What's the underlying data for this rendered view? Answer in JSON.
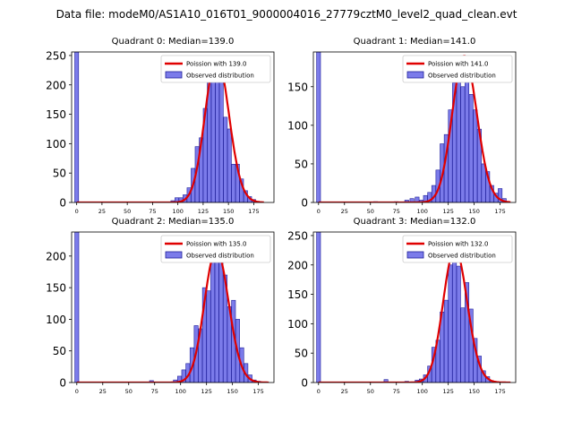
{
  "suptitle": "Data file: modeM0/AS1A10_016T01_9000004016_27779cztM0_level2_quad_clean.evt",
  "colors": {
    "bar_fill": "#7b7bea",
    "bar_edge": "#1f1f9a",
    "line": "#e00000"
  },
  "chart_data": [
    {
      "type": "bar",
      "title": "Quadrant 0: Median=139.0",
      "legend": [
        "Poission with 139.0",
        "Observed distribution"
      ],
      "legend_position": "top-right",
      "xlim": [
        -5,
        195
      ],
      "ylim": [
        0,
        256
      ],
      "xticks": [
        0,
        25,
        50,
        75,
        100,
        125,
        150,
        175
      ],
      "yticks": [
        0,
        50,
        100,
        150,
        200,
        250
      ],
      "bin_width": 3.8,
      "bins": [
        [
          0,
          300
        ],
        [
          95,
          3
        ],
        [
          99,
          8
        ],
        [
          103,
          8
        ],
        [
          107,
          13
        ],
        [
          111,
          25
        ],
        [
          115,
          58
        ],
        [
          119,
          95
        ],
        [
          123,
          110
        ],
        [
          127,
          160
        ],
        [
          131,
          235
        ],
        [
          135,
          225
        ],
        [
          139,
          248
        ],
        [
          143,
          205
        ],
        [
          147,
          145
        ],
        [
          151,
          125
        ],
        [
          155,
          65
        ],
        [
          159,
          65
        ],
        [
          163,
          40
        ],
        [
          167,
          20
        ],
        [
          171,
          10
        ],
        [
          175,
          5
        ]
      ],
      "poisson_mean": 139.0
    },
    {
      "type": "bar",
      "title": "Quadrant 1: Median=141.0",
      "legend": [
        "Poission with 141.0",
        "Observed distribution"
      ],
      "legend_position": "top-right",
      "xlim": [
        -5,
        190
      ],
      "ylim": [
        0,
        195
      ],
      "xticks": [
        0,
        25,
        50,
        75,
        100,
        125,
        150,
        175
      ],
      "yticks": [
        0,
        50,
        100,
        150
      ],
      "bin_width": 3.8,
      "bins": [
        [
          0,
          300
        ],
        [
          55,
          1
        ],
        [
          75,
          1
        ],
        [
          85,
          3
        ],
        [
          90,
          5
        ],
        [
          95,
          7
        ],
        [
          99,
          3
        ],
        [
          103,
          9
        ],
        [
          107,
          13
        ],
        [
          111,
          22
        ],
        [
          115,
          42
        ],
        [
          119,
          76
        ],
        [
          123,
          88
        ],
        [
          127,
          120
        ],
        [
          131,
          155
        ],
        [
          135,
          185
        ],
        [
          139,
          150
        ],
        [
          143,
          190
        ],
        [
          147,
          140
        ],
        [
          151,
          120
        ],
        [
          155,
          95
        ],
        [
          159,
          50
        ],
        [
          163,
          40
        ],
        [
          167,
          22
        ],
        [
          171,
          12
        ],
        [
          175,
          18
        ],
        [
          179,
          5
        ]
      ],
      "poisson_mean": 141.0
    },
    {
      "type": "bar",
      "title": "Quadrant 2: Median=135.0",
      "legend": [
        "Poission with 135.0",
        "Observed distribution"
      ],
      "legend_position": "top-right",
      "xlim": [
        -5,
        190
      ],
      "ylim": [
        0,
        238
      ],
      "xticks": [
        0,
        25,
        50,
        75,
        100,
        125,
        150,
        175
      ],
      "yticks": [
        0,
        50,
        100,
        150,
        200
      ],
      "bin_width": 3.8,
      "bins": [
        [
          0,
          300
        ],
        [
          72,
          3
        ],
        [
          95,
          4
        ],
        [
          99,
          10
        ],
        [
          103,
          20
        ],
        [
          107,
          30
        ],
        [
          111,
          55
        ],
        [
          115,
          90
        ],
        [
          119,
          85
        ],
        [
          123,
          150
        ],
        [
          127,
          145
        ],
        [
          131,
          200
        ],
        [
          135,
          190
        ],
        [
          139,
          210
        ],
        [
          143,
          170
        ],
        [
          147,
          120
        ],
        [
          151,
          130
        ],
        [
          155,
          100
        ],
        [
          159,
          55
        ],
        [
          163,
          30
        ],
        [
          167,
          12
        ],
        [
          171,
          4
        ],
        [
          175,
          2
        ]
      ],
      "poisson_mean": 135.0
    },
    {
      "type": "bar",
      "title": "Quadrant 3: Median=132.0",
      "legend": [
        "Poission with 132.0",
        "Observed distribution"
      ],
      "legend_position": "top-right",
      "xlim": [
        -5,
        190
      ],
      "ylim": [
        0,
        256
      ],
      "xticks": [
        0,
        25,
        50,
        75,
        100,
        125,
        150,
        175
      ],
      "yticks": [
        0,
        50,
        100,
        150,
        200,
        250
      ],
      "bin_width": 3.8,
      "bins": [
        [
          0,
          300
        ],
        [
          65,
          5
        ],
        [
          85,
          2
        ],
        [
          95,
          4
        ],
        [
          99,
          6
        ],
        [
          103,
          13
        ],
        [
          107,
          28
        ],
        [
          111,
          60
        ],
        [
          115,
          72
        ],
        [
          119,
          120
        ],
        [
          123,
          140
        ],
        [
          127,
          200
        ],
        [
          131,
          228
        ],
        [
          135,
          198
        ],
        [
          139,
          127
        ],
        [
          143,
          170
        ],
        [
          147,
          125
        ],
        [
          151,
          75
        ],
        [
          155,
          45
        ],
        [
          159,
          20
        ],
        [
          163,
          10
        ],
        [
          167,
          3
        ],
        [
          171,
          1
        ]
      ],
      "poisson_mean": 132.0
    }
  ]
}
